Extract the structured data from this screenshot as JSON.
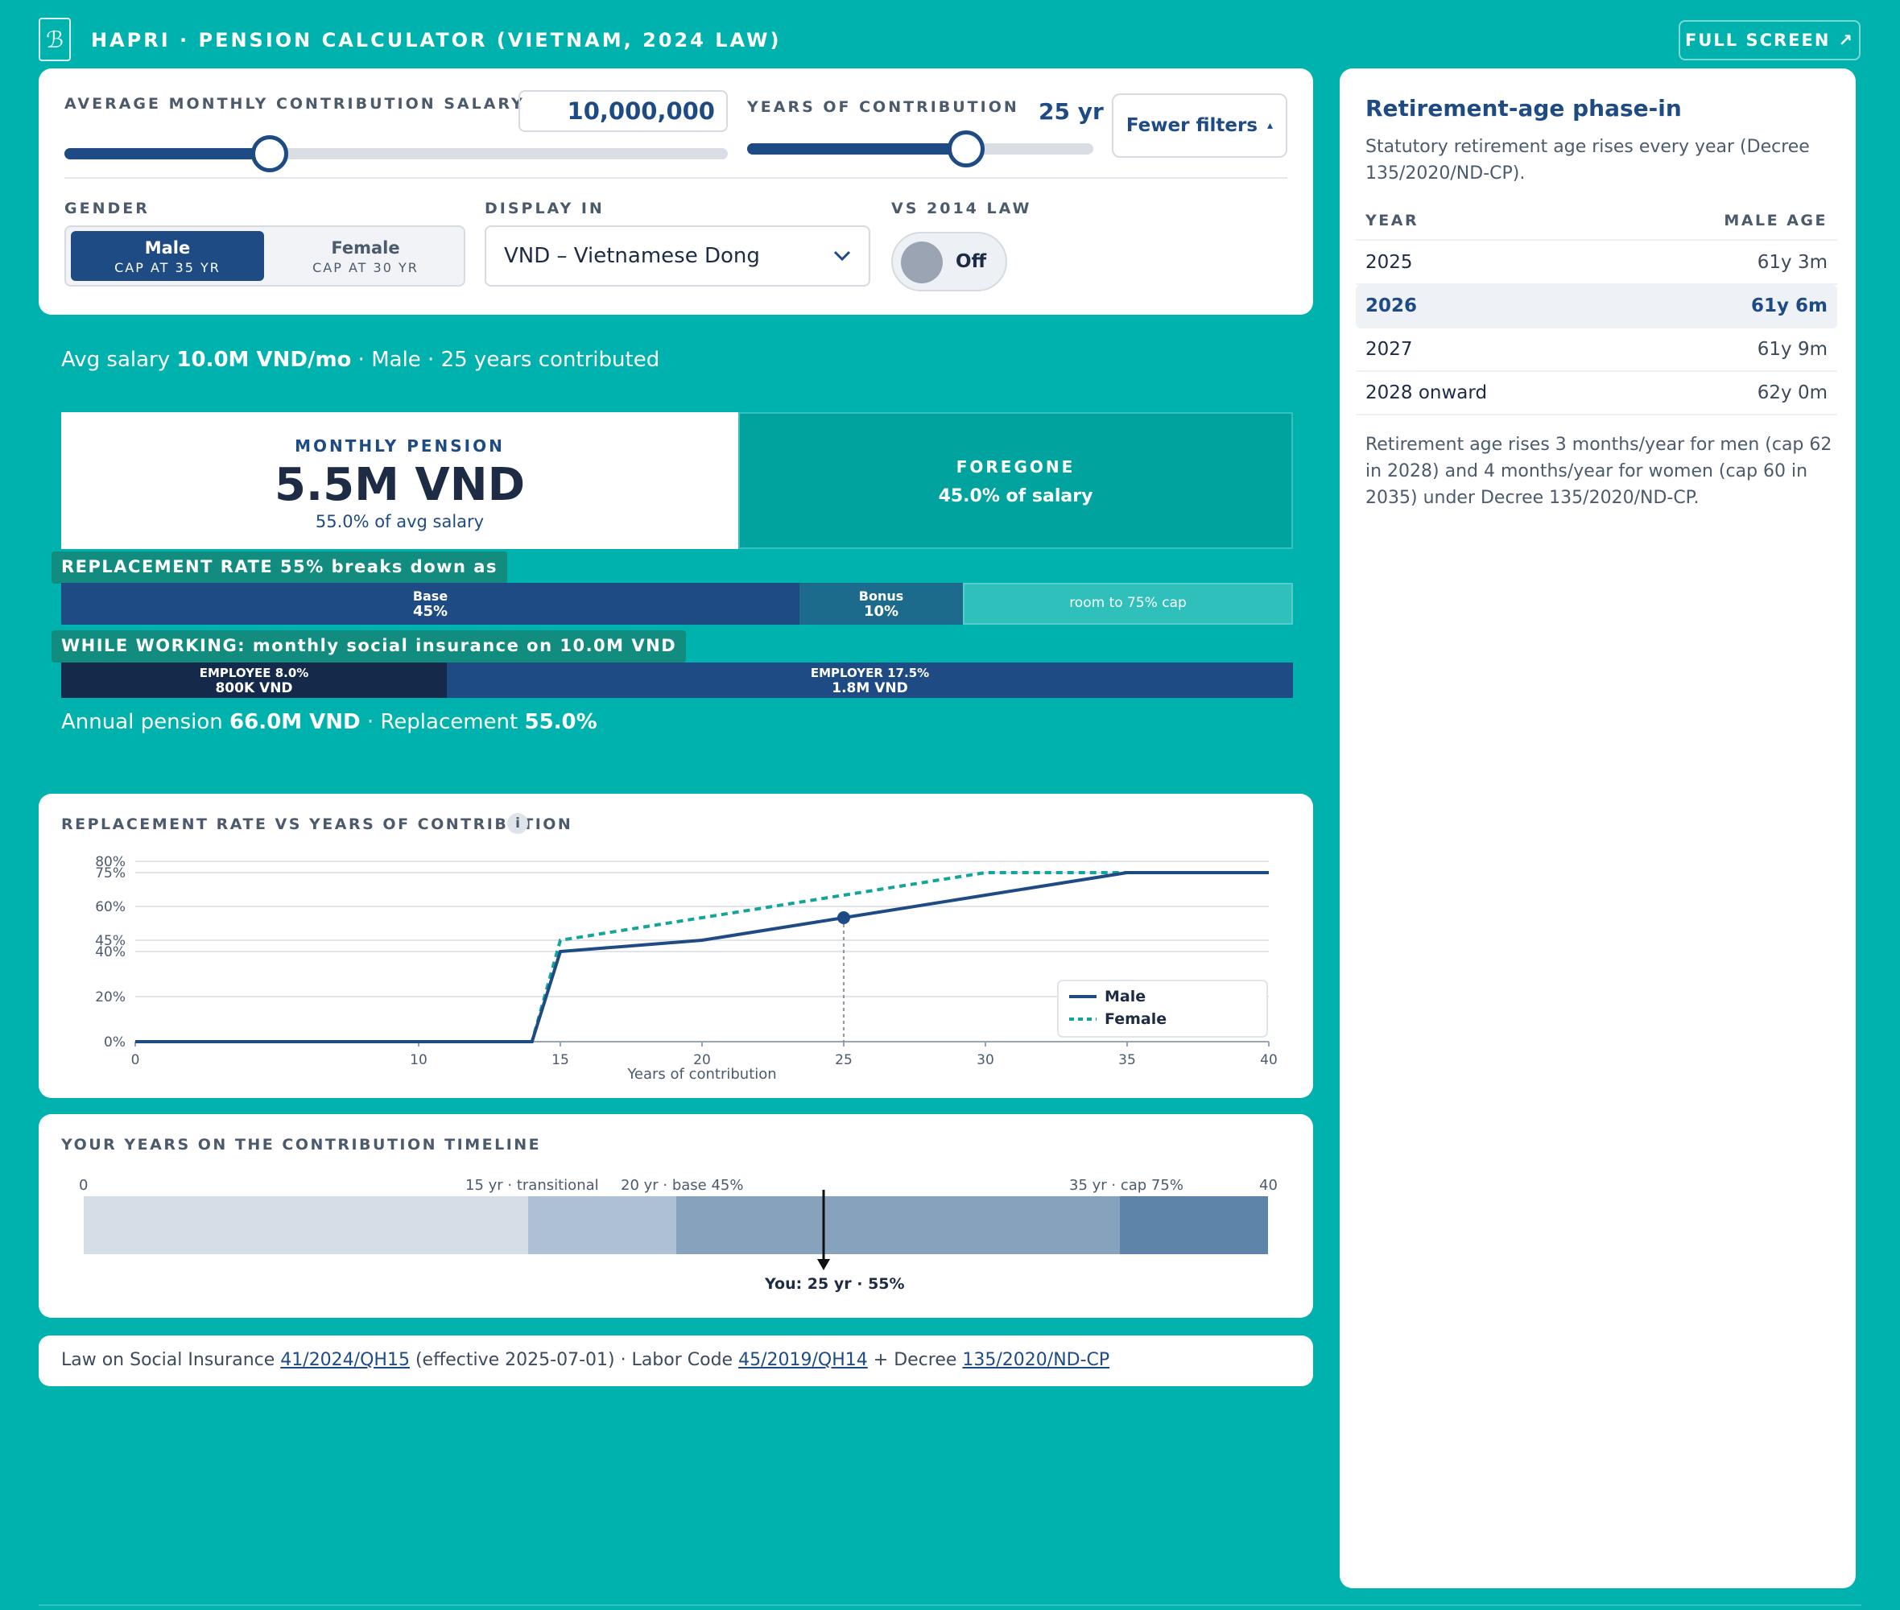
{
  "header": {
    "title": "HAPRI · PENSION CALCULATOR (VIETNAM, 2024 LAW)",
    "fullscreen_label": "FULL SCREEN",
    "fullscreen_icon": "↗"
  },
  "filters": {
    "salary_label": "AVERAGE MONTHLY CONTRIBUTION SALARY",
    "salary_value": "10,000,000",
    "salary_slider_fraction": 0.2,
    "years_label": "YEARS OF CONTRIBUTION",
    "years_value": "25 yr",
    "years_slider_fraction": 0.6,
    "fewer_filters_label": "Fewer filters",
    "fewer_filters_icon": "▴",
    "gender_label": "GENDER",
    "gender_options": [
      {
        "label": "Male",
        "sub": "CAP AT 35 YR",
        "selected": true
      },
      {
        "label": "Female",
        "sub": "CAP AT 30 YR",
        "selected": false
      }
    ],
    "display_label": "DISPLAY IN",
    "display_value": "VND – Vietnamese Dong",
    "vs_label": "VS 2014 LAW",
    "vs_value": "Off"
  },
  "summary": {
    "prefix": "Avg salary",
    "salary": "10.0M VND/mo",
    "rest": "· Male · 25 years contributed"
  },
  "pension": {
    "label": "MONTHLY PENSION",
    "value": "5.5M VND",
    "sub": "55.0% of avg salary",
    "foregone_label": "FOREGONE",
    "foregone_sub": "45.0% of salary"
  },
  "breakdown": {
    "title": "REPLACEMENT RATE 55% breaks down as",
    "segments": [
      {
        "label": "Base",
        "value": "45%",
        "share": 45
      },
      {
        "label": "Bonus",
        "value": "10%",
        "share": 10
      },
      {
        "label": "room to 75% cap",
        "value": "",
        "share": 20
      }
    ]
  },
  "working": {
    "title": "WHILE WORKING: monthly social insurance on 10.0M VND",
    "segments": [
      {
        "label": "EMPLOYEE 8.0%",
        "value": "800K VND",
        "share": 8
      },
      {
        "label": "EMPLOYER 17.5%",
        "value": "1.8M VND",
        "share": 17.5
      }
    ]
  },
  "annual": {
    "prefix": "Annual pension",
    "value": "66.0M VND",
    "mid": "· Replacement",
    "rate": "55.0%"
  },
  "chart": {
    "title": "REPLACEMENT RATE VS YEARS OF CONTRIBUTION",
    "info_icon": "i"
  },
  "chart_data": {
    "type": "line",
    "title": "REPLACEMENT RATE VS YEARS OF CONTRIBUTION",
    "xlabel": "Years of contribution",
    "ylabel": "",
    "xlim": [
      0,
      40
    ],
    "ylim": [
      0,
      80
    ],
    "xticks": [
      0,
      10,
      15,
      20,
      25,
      30,
      35,
      40
    ],
    "yticks": [
      0,
      20,
      40,
      45,
      60,
      75,
      80
    ],
    "ytick_labels": [
      "0%",
      "20%",
      "40%",
      "45%",
      "60%",
      "75%",
      "80%"
    ],
    "grid": true,
    "legend": "bottom-right",
    "series": [
      {
        "name": "Male",
        "style": "solid",
        "color": "#1f4b84",
        "x": [
          0,
          14,
          15,
          20,
          25,
          30,
          35,
          40
        ],
        "y": [
          0,
          0,
          40,
          45,
          55,
          65,
          75,
          75
        ]
      },
      {
        "name": "Female",
        "style": "dashed",
        "color": "#13a59c",
        "x": [
          0,
          14,
          15,
          20,
          25,
          30,
          35,
          40
        ],
        "y": [
          0,
          0,
          45,
          55,
          65,
          75,
          75,
          75
        ]
      }
    ],
    "marker": {
      "x": 25,
      "y": 55
    }
  },
  "timeline": {
    "title": "YOUR YEARS ON THE CONTRIBUTION TIMELINE",
    "start_label": "0",
    "end_label": "40",
    "labels": [
      {
        "text": "15 yr · transitional",
        "year": 15
      },
      {
        "text": "20 yr · base 45%",
        "year": 20
      },
      {
        "text": "35 yr · cap 75%",
        "year": 35
      }
    ],
    "segments": [
      {
        "from": 0,
        "to": 15,
        "color": "#d5dde6"
      },
      {
        "from": 15,
        "to": 20,
        "color": "#adc0d4"
      },
      {
        "from": 20,
        "to": 35,
        "color": "#87a2bd"
      },
      {
        "from": 35,
        "to": 40,
        "color": "#5f84aa"
      }
    ],
    "you_year": 25,
    "you_label": "You: 25 yr · 55%"
  },
  "footer": {
    "t1": "Law on Social Insurance",
    "l1": "41/2024/QH15",
    "t2": "(effective 2025-07-01) · Labor Code",
    "l2": "45/2019/QH14",
    "t3": "+ Decree",
    "l3": "135/2020/ND-CP"
  },
  "phase_in": {
    "title": "Retirement-age phase-in",
    "description": "Statutory retirement age rises every year (Decree 135/2020/ND-CP).",
    "col_year": "YEAR",
    "col_age": "MALE AGE",
    "rows": [
      {
        "year": "2025",
        "age": "61y 3m",
        "highlight": false
      },
      {
        "year": "2026",
        "age": "61y 6m",
        "highlight": true
      },
      {
        "year": "2027",
        "age": "61y 9m",
        "highlight": false
      },
      {
        "year": "2028 onward",
        "age": "62y 0m",
        "highlight": false
      }
    ],
    "note": "Retirement age rises 3 months/year for men (cap 62 in 2028) and 4 months/year for women (cap 60 in 2035) under Decree 135/2020/ND-CP."
  }
}
